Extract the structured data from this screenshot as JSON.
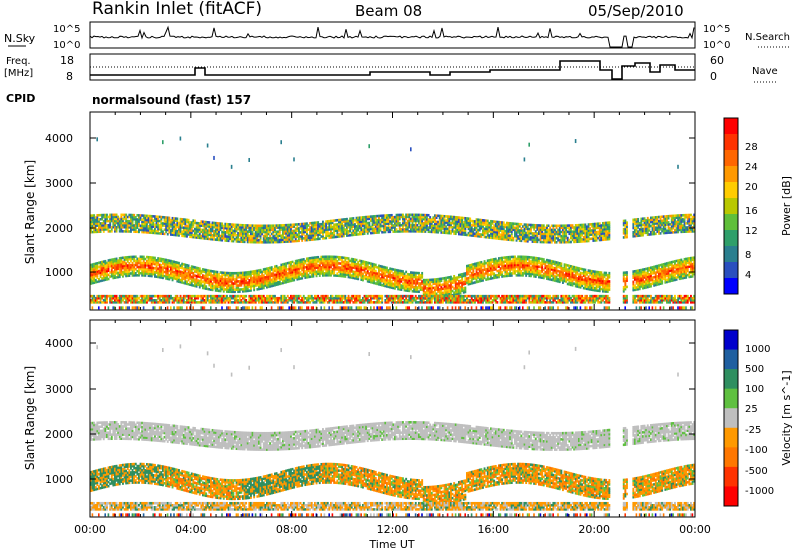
{
  "header": {
    "station": "Rankin Inlet (fitACF)",
    "beam": "Beam 08",
    "date": "05/Sep/2010"
  },
  "panels": {
    "nsky": {
      "label": "N.Sky",
      "tick_top": "10^5",
      "tick_bottom": "10^0",
      "right_tick_top": "10^5",
      "right_tick_bottom": "10^0",
      "legend": "N.Search"
    },
    "freq": {
      "label_line1": "Freq.",
      "label_line2": "[MHz]",
      "ticks_left": [
        "18",
        "8"
      ],
      "ticks_right": [
        "60",
        "0"
      ],
      "legend": "Nave"
    },
    "cpid": {
      "label": "CPID",
      "value": "normalsound (fast) 157"
    }
  },
  "axes": {
    "ylabel": "Slant Range [km]",
    "xlabel": "Time UT",
    "yticks": [
      "1000",
      "2000",
      "3000",
      "4000"
    ],
    "xticks": [
      "00:00",
      "04:00",
      "08:00",
      "12:00",
      "16:00",
      "20:00",
      "00:00"
    ]
  },
  "colorbars": {
    "power": {
      "label": "Power [dB]",
      "ticks": [
        "28",
        "24",
        "20",
        "16",
        "12",
        "8",
        "4"
      ],
      "colors": [
        "#ff0000",
        "#ff3300",
        "#ff6600",
        "#ff9900",
        "#ffcc00",
        "#b9c800",
        "#5fbf3a",
        "#2f9f6a",
        "#2a7f8f",
        "#2a4fbf",
        "#0000ff"
      ]
    },
    "velocity": {
      "label": "Velocity [m s^-1]",
      "ticks": [
        "1000",
        "500",
        "100",
        "25",
        "-25",
        "-100",
        "-500",
        "-1000"
      ],
      "colors": [
        "#0000cc",
        "#1f5fa0",
        "#2f8f60",
        "#5fc040",
        "#bfbfbf",
        "#ff9900",
        "#ff7700",
        "#ff3300",
        "#ff0000"
      ]
    }
  },
  "chart_data": [
    {
      "type": "heatmap",
      "title": "Power [dB]",
      "xlabel": "Time UT",
      "ylabel": "Slant Range [km]",
      "xlim": [
        "00:00",
        "24:00"
      ],
      "ylim": [
        180,
        4500
      ],
      "clim": [
        0,
        30
      ],
      "scatter_layers": [
        {
          "name": "main echo band",
          "range_km": [
            700,
            1300
          ],
          "dominant_db": [
            24,
            30
          ]
        },
        {
          "name": "upper band",
          "range_km": [
            1600,
            2400
          ],
          "dominant_db": [
            8,
            20
          ]
        },
        {
          "name": "sporadic far echoes",
          "range_km": [
            3300,
            4000
          ],
          "dominant_db": [
            4,
            16
          ]
        }
      ]
    },
    {
      "type": "heatmap",
      "title": "Velocity [m s^-1]",
      "xlabel": "Time UT",
      "ylabel": "Slant Range [km]",
      "xlim": [
        "00:00",
        "24:00"
      ],
      "ylim": [
        180,
        4500
      ],
      "clim": [
        -1000,
        1000
      ],
      "scatter_layers": [
        {
          "name": "ground scatter",
          "range_km": [
            1600,
            2400
          ],
          "dominant_velocity": "-25 to 25"
        },
        {
          "name": "main echo band",
          "range_km": [
            700,
            1300
          ],
          "dominant_velocity": "-500 to 100"
        }
      ]
    }
  ]
}
